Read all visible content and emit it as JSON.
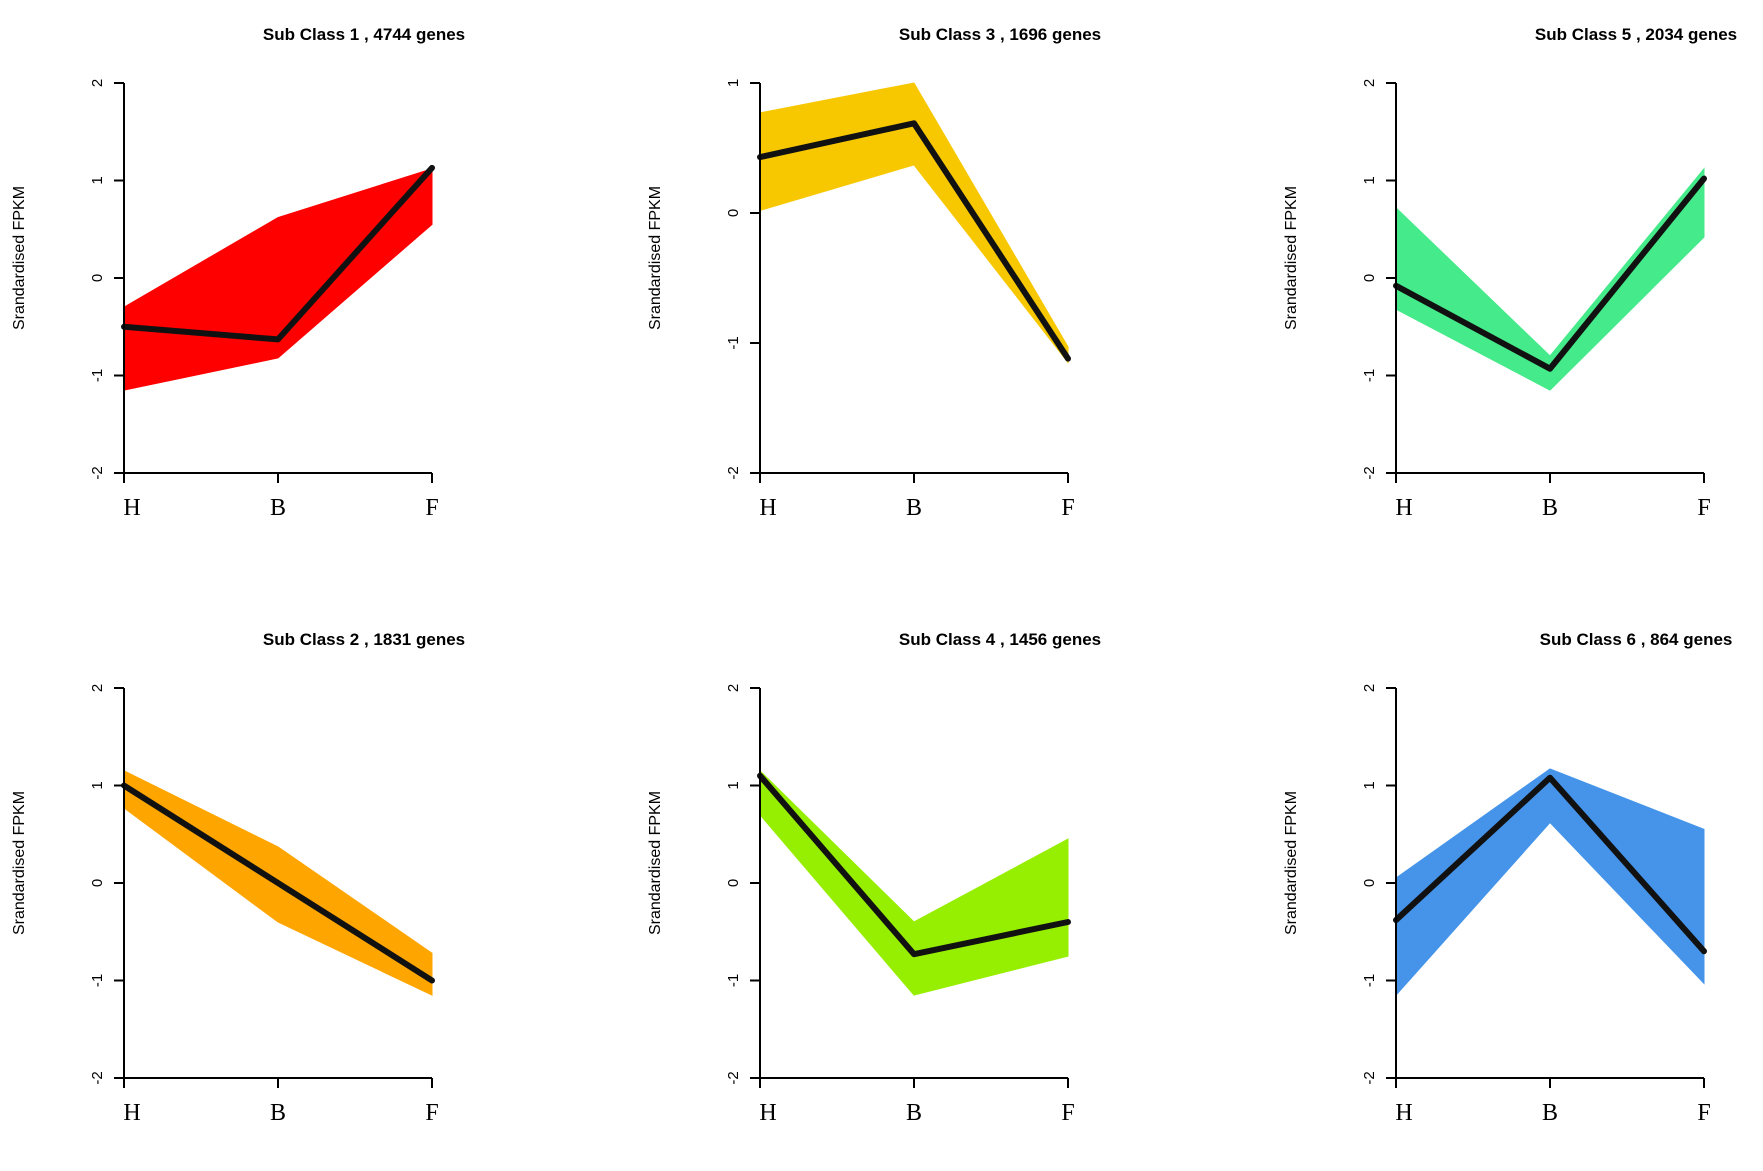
{
  "chart_data": [
    {
      "type": "area",
      "title": "Sub Class  1  , 4744 genes",
      "ylabel": "Srandardised FPKM",
      "categories": [
        "H",
        "B",
        "F"
      ],
      "ylim": [
        -2,
        2
      ],
      "yticks": [
        "-2",
        "-1",
        "0",
        "1",
        "2"
      ],
      "color": "#ff0000",
      "band_upper": [
        -0.3,
        0.62,
        1.12
      ],
      "band_lower": [
        -1.15,
        -0.82,
        0.55
      ],
      "mean": [
        -0.5,
        -0.63,
        1.13
      ]
    },
    {
      "type": "area",
      "title": "Sub Class  2  , 1831 genes",
      "ylabel": "Srandardised FPKM",
      "categories": [
        "H",
        "B",
        "F"
      ],
      "ylim": [
        -2,
        2
      ],
      "yticks": [
        "-2",
        "-1",
        "0",
        "1",
        "2"
      ],
      "color": "#ffa500",
      "band_upper": [
        1.15,
        0.37,
        -0.72
      ],
      "band_lower": [
        0.77,
        -0.4,
        -1.15
      ],
      "mean": [
        1.0,
        0.0,
        -1.0
      ]
    },
    {
      "type": "area",
      "title": "Sub Class  3  , 1696 genes",
      "ylabel": "Srandardised FPKM",
      "categories": [
        "H",
        "B",
        "F"
      ],
      "ylim": [
        -2,
        1
      ],
      "yticks": [
        "-2",
        "-1",
        "0",
        "1"
      ],
      "color": "#f7c800",
      "band_upper": [
        0.77,
        1.0,
        -1.03
      ],
      "band_lower": [
        0.02,
        0.37,
        -1.15
      ],
      "mean": [
        0.43,
        0.69,
        -1.12
      ]
    },
    {
      "type": "area",
      "title": "Sub Class  4  , 1456 genes",
      "ylabel": "Srandardised FPKM",
      "categories": [
        "H",
        "B",
        "F"
      ],
      "ylim": [
        -2,
        2
      ],
      "yticks": [
        "-2",
        "-1",
        "0",
        "1",
        "2"
      ],
      "color": "#96ee00",
      "band_upper": [
        1.15,
        -0.4,
        0.45
      ],
      "band_lower": [
        0.7,
        -1.15,
        -0.75
      ],
      "mean": [
        1.1,
        -0.73,
        -0.4
      ]
    },
    {
      "type": "area",
      "title": "Sub Class  5  , 2034 genes",
      "ylabel": "Srandardised FPKM",
      "categories": [
        "H",
        "B",
        "F"
      ],
      "ylim": [
        -2,
        2
      ],
      "yticks": [
        "-2",
        "-1",
        "0",
        "1",
        "2"
      ],
      "color": "#45ea8a",
      "band_upper": [
        0.72,
        -0.8,
        1.12
      ],
      "band_lower": [
        -0.32,
        -1.15,
        0.42
      ],
      "mean": [
        -0.08,
        -0.93,
        1.02
      ]
    },
    {
      "type": "area",
      "title": "Sub Class  6  , 864 genes",
      "ylabel": "Srandardised FPKM",
      "categories": [
        "H",
        "B",
        "F"
      ],
      "ylim": [
        -2,
        2
      ],
      "yticks": [
        "-2",
        "-1",
        "0",
        "1",
        "2"
      ],
      "color": "#4594ea",
      "band_upper": [
        0.05,
        1.17,
        0.55
      ],
      "band_lower": [
        -1.15,
        0.62,
        -1.03
      ],
      "mean": [
        -0.38,
        1.08,
        -0.7
      ]
    }
  ]
}
